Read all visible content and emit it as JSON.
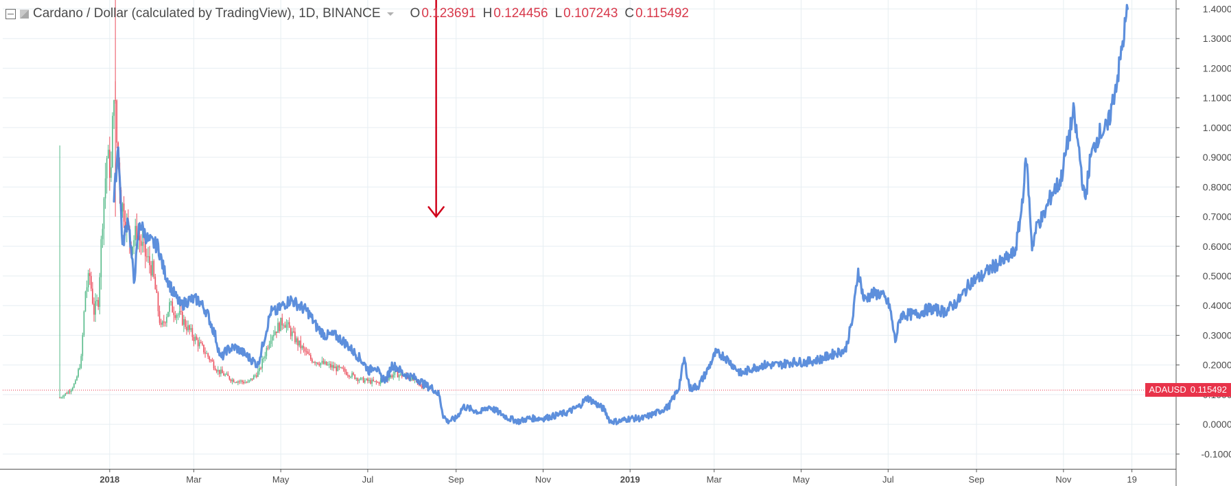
{
  "legend": {
    "title": "Cardano / Dollar (calculated by TradingView), 1D, BINANCE",
    "ohlc": [
      {
        "label": "O",
        "value": "0.123691"
      },
      {
        "label": "H",
        "value": "0.124456"
      },
      {
        "label": "L",
        "value": "0.107243"
      },
      {
        "label": "C",
        "value": "0.115492"
      }
    ]
  },
  "price_tag": {
    "symbol": "ADAUSD",
    "value": "0.115492"
  },
  "colors": {
    "up": "#53b987",
    "down": "#eb4d5c",
    "overlay": "#4f86d9",
    "arrow": "#d0021b",
    "grid": "#e6eef2",
    "axis_text": "#4a4a4a",
    "price_line": "#e8334a"
  },
  "chart_data": {
    "type": "line",
    "title": "Cardano / Dollar (calculated by TradingView), 1D, BINANCE",
    "xlabel": "",
    "ylabel": "",
    "y_ticks": [
      -0.1,
      0.0,
      0.1,
      0.2,
      0.3,
      0.4,
      0.5,
      0.6,
      0.7,
      0.8,
      0.9,
      1.0,
      1.1,
      1.2,
      1.3,
      1.4
    ],
    "y_tick_labels": [
      "-0.100000",
      "0.000000",
      "0.100000",
      "0.200000",
      "0.300000",
      "0.400000",
      "0.500000",
      "0.600000",
      "0.700000",
      "0.800000",
      "0.900000",
      "1.000000",
      "1.100000",
      "1.200000",
      "1.300000",
      "1.400000"
    ],
    "ylim": [
      -0.15,
      1.43
    ],
    "x_ticks": [
      {
        "label": "2018",
        "date": "2018-01-01",
        "bold": true
      },
      {
        "label": "Mar",
        "date": "2018-03-01",
        "bold": false
      },
      {
        "label": "May",
        "date": "2018-05-01",
        "bold": false
      },
      {
        "label": "Jul",
        "date": "2018-07-01",
        "bold": false
      },
      {
        "label": "Sep",
        "date": "2018-09-01",
        "bold": false
      },
      {
        "label": "Nov",
        "date": "2018-11-01",
        "bold": false
      },
      {
        "label": "2019",
        "date": "2019-01-01",
        "bold": true
      },
      {
        "label": "Mar",
        "date": "2019-03-01",
        "bold": false
      },
      {
        "label": "May",
        "date": "2019-05-01",
        "bold": false
      },
      {
        "label": "Jul",
        "date": "2019-07-01",
        "bold": false
      },
      {
        "label": "Sep",
        "date": "2019-09-01",
        "bold": false
      },
      {
        "label": "Nov",
        "date": "2019-11-01",
        "bold": false
      },
      {
        "label": "19",
        "date": "2019-12-19",
        "bold": false
      }
    ],
    "current_price": 0.115492,
    "series": [
      {
        "kind": "candles",
        "points": [
          [
            "2017-11-27",
            0.09
          ],
          [
            "2017-12-03",
            0.11
          ],
          [
            "2017-12-08",
            0.14
          ],
          [
            "2017-12-12",
            0.22
          ],
          [
            "2017-12-15",
            0.45
          ],
          [
            "2017-12-18",
            0.5
          ],
          [
            "2017-12-21",
            0.38
          ],
          [
            "2017-12-24",
            0.42
          ],
          [
            "2017-12-27",
            0.7
          ],
          [
            "2017-12-30",
            0.9
          ],
          [
            "2018-01-02",
            0.85
          ],
          [
            "2018-01-04",
            1.15
          ],
          [
            "2018-01-06",
            0.95
          ],
          [
            "2018-01-09",
            0.75
          ],
          [
            "2018-01-12",
            0.7
          ],
          [
            "2018-01-16",
            0.6
          ],
          [
            "2018-01-20",
            0.65
          ],
          [
            "2018-01-25",
            0.58
          ],
          [
            "2018-01-31",
            0.52
          ],
          [
            "2018-02-06",
            0.32
          ],
          [
            "2018-02-12",
            0.4
          ],
          [
            "2018-02-20",
            0.36
          ],
          [
            "2018-02-28",
            0.3
          ],
          [
            "2018-03-08",
            0.25
          ],
          [
            "2018-03-18",
            0.18
          ],
          [
            "2018-03-28",
            0.15
          ],
          [
            "2018-04-08",
            0.14
          ],
          [
            "2018-04-16",
            0.18
          ],
          [
            "2018-04-24",
            0.3
          ],
          [
            "2018-05-03",
            0.35
          ],
          [
            "2018-05-12",
            0.28
          ],
          [
            "2018-05-22",
            0.22
          ],
          [
            "2018-06-02",
            0.2
          ],
          [
            "2018-06-14",
            0.18
          ],
          [
            "2018-06-26",
            0.15
          ],
          [
            "2018-07-08",
            0.14
          ],
          [
            "2018-07-20",
            0.17
          ],
          [
            "2018-07-30",
            0.16
          ],
          [
            "2018-08-10",
            0.12
          ]
        ]
      },
      {
        "kind": "overlay",
        "points": [
          [
            "2018-01-04",
            0.75
          ],
          [
            "2018-01-07",
            0.95
          ],
          [
            "2018-01-10",
            0.6
          ],
          [
            "2018-01-14",
            0.7
          ],
          [
            "2018-01-18",
            0.48
          ],
          [
            "2018-01-22",
            0.68
          ],
          [
            "2018-01-28",
            0.62
          ],
          [
            "2018-02-04",
            0.6
          ],
          [
            "2018-02-08",
            0.52
          ],
          [
            "2018-02-14",
            0.45
          ],
          [
            "2018-02-20",
            0.4
          ],
          [
            "2018-02-26",
            0.42
          ],
          [
            "2018-03-04",
            0.42
          ],
          [
            "2018-03-10",
            0.38
          ],
          [
            "2018-03-16",
            0.3
          ],
          [
            "2018-03-20",
            0.22
          ],
          [
            "2018-03-24",
            0.25
          ],
          [
            "2018-03-30",
            0.26
          ],
          [
            "2018-04-05",
            0.24
          ],
          [
            "2018-04-10",
            0.22
          ],
          [
            "2018-04-15",
            0.2
          ],
          [
            "2018-04-20",
            0.3
          ],
          [
            "2018-04-24",
            0.38
          ],
          [
            "2018-04-28",
            0.38
          ],
          [
            "2018-05-02",
            0.4
          ],
          [
            "2018-05-08",
            0.42
          ],
          [
            "2018-05-14",
            0.4
          ],
          [
            "2018-05-20",
            0.38
          ],
          [
            "2018-05-26",
            0.33
          ],
          [
            "2018-06-01",
            0.3
          ],
          [
            "2018-06-08",
            0.3
          ],
          [
            "2018-06-14",
            0.28
          ],
          [
            "2018-06-20",
            0.25
          ],
          [
            "2018-06-26",
            0.22
          ],
          [
            "2018-07-02",
            0.18
          ],
          [
            "2018-07-06",
            0.2
          ],
          [
            "2018-07-10",
            0.16
          ],
          [
            "2018-07-14",
            0.15
          ],
          [
            "2018-07-18",
            0.2
          ],
          [
            "2018-07-22",
            0.19
          ],
          [
            "2018-07-26",
            0.17
          ],
          [
            "2018-08-01",
            0.16
          ],
          [
            "2018-08-06",
            0.15
          ],
          [
            "2018-08-11",
            0.13
          ],
          [
            "2018-08-16",
            0.12
          ],
          [
            "2018-08-20",
            0.1
          ],
          [
            "2018-08-23",
            0.03
          ],
          [
            "2018-08-26",
            0.01
          ],
          [
            "2018-09-01",
            0.02
          ],
          [
            "2018-09-06",
            0.06
          ],
          [
            "2018-09-12",
            0.05
          ],
          [
            "2018-09-18",
            0.04
          ],
          [
            "2018-09-24",
            0.06
          ],
          [
            "2018-10-01",
            0.04
          ],
          [
            "2018-10-08",
            0.02
          ],
          [
            "2018-10-15",
            0.01
          ],
          [
            "2018-10-22",
            0.02
          ],
          [
            "2018-11-01",
            0.02
          ],
          [
            "2018-11-10",
            0.03
          ],
          [
            "2018-11-18",
            0.04
          ],
          [
            "2018-11-26",
            0.06
          ],
          [
            "2018-12-02",
            0.09
          ],
          [
            "2018-12-08",
            0.07
          ],
          [
            "2018-12-14",
            0.05
          ],
          [
            "2018-12-18",
            0.01
          ],
          [
            "2018-12-24",
            0.01
          ],
          [
            "2019-01-01",
            0.02
          ],
          [
            "2019-01-10",
            0.02
          ],
          [
            "2019-01-20",
            0.04
          ],
          [
            "2019-01-28",
            0.06
          ],
          [
            "2019-02-04",
            0.12
          ],
          [
            "2019-02-08",
            0.22
          ],
          [
            "2019-02-12",
            0.12
          ],
          [
            "2019-02-18",
            0.13
          ],
          [
            "2019-02-24",
            0.18
          ],
          [
            "2019-03-02",
            0.24
          ],
          [
            "2019-03-08",
            0.23
          ],
          [
            "2019-03-14",
            0.2
          ],
          [
            "2019-03-20",
            0.17
          ],
          [
            "2019-03-28",
            0.19
          ],
          [
            "2019-04-05",
            0.2
          ],
          [
            "2019-04-15",
            0.2
          ],
          [
            "2019-04-25",
            0.21
          ],
          [
            "2019-05-05",
            0.21
          ],
          [
            "2019-05-15",
            0.22
          ],
          [
            "2019-05-25",
            0.24
          ],
          [
            "2019-06-01",
            0.25
          ],
          [
            "2019-06-06",
            0.35
          ],
          [
            "2019-06-10",
            0.52
          ],
          [
            "2019-06-14",
            0.42
          ],
          [
            "2019-06-20",
            0.44
          ],
          [
            "2019-06-26",
            0.44
          ],
          [
            "2019-07-02",
            0.4
          ],
          [
            "2019-07-06",
            0.28
          ],
          [
            "2019-07-10",
            0.37
          ],
          [
            "2019-07-20",
            0.37
          ],
          [
            "2019-07-30",
            0.39
          ],
          [
            "2019-08-10",
            0.38
          ],
          [
            "2019-08-20",
            0.42
          ],
          [
            "2019-08-28",
            0.48
          ],
          [
            "2019-09-05",
            0.5
          ],
          [
            "2019-09-12",
            0.53
          ],
          [
            "2019-09-20",
            0.55
          ],
          [
            "2019-09-28",
            0.58
          ],
          [
            "2019-10-02",
            0.7
          ],
          [
            "2019-10-06",
            0.9
          ],
          [
            "2019-10-10",
            0.6
          ],
          [
            "2019-10-14",
            0.68
          ],
          [
            "2019-10-18",
            0.7
          ],
          [
            "2019-10-24",
            0.78
          ],
          [
            "2019-10-30",
            0.82
          ],
          [
            "2019-11-04",
            0.95
          ],
          [
            "2019-11-08",
            1.05
          ],
          [
            "2019-11-12",
            0.92
          ],
          [
            "2019-11-16",
            0.75
          ],
          [
            "2019-11-20",
            0.9
          ],
          [
            "2019-11-26",
            0.98
          ],
          [
            "2019-12-02",
            1.0
          ],
          [
            "2019-12-06",
            1.1
          ],
          [
            "2019-12-10",
            1.2
          ],
          [
            "2019-12-13",
            1.3
          ],
          [
            "2019-12-16",
            1.4
          ]
        ]
      }
    ],
    "annotations": [
      {
        "kind": "arrow-down",
        "date": "2018-08-18",
        "from_y": 1.43,
        "to_y": 0.7
      }
    ]
  }
}
